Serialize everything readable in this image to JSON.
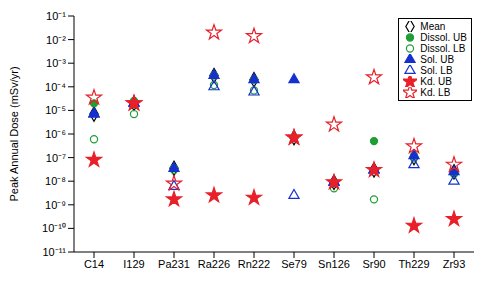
{
  "chart_data": {
    "type": "scatter",
    "ylabel": "Peak Annual Dose (mSv/yr)",
    "categories": [
      "C14",
      "I129",
      "Pa231",
      "Ra226",
      "Rn222",
      "Se79",
      "Sn126",
      "Sr90",
      "Th229",
      "Zr93"
    ],
    "log": "y",
    "grid": false,
    "legend": "top right",
    "ylim": [
      1e-11,
      0.1
    ],
    "yticks": [
      {
        "value": 1e-11,
        "label": "10⁻¹¹"
      },
      {
        "value": 1e-10,
        "label": "10⁻¹⁰"
      },
      {
        "value": 1e-09,
        "label": "10⁻⁹"
      },
      {
        "value": 1e-08,
        "label": "10⁻⁸"
      },
      {
        "value": 1e-07,
        "label": "10⁻⁷"
      },
      {
        "value": 1e-06,
        "label": "10⁻⁶"
      },
      {
        "value": 1e-05,
        "label": "10⁻⁵"
      },
      {
        "value": 0.0001,
        "label": "10⁻⁴"
      },
      {
        "value": 0.001,
        "label": "10⁻³"
      },
      {
        "value": 0.01,
        "label": "10⁻²"
      },
      {
        "value": 0.1,
        "label": "10⁻¹"
      }
    ],
    "series": [
      {
        "name": "Mean",
        "color": "#000000",
        "marker": "diamond_open",
        "values": [
          7e-06,
          2e-05,
          3.5e-08,
          0.0003,
          0.0002,
          7e-07,
          9e-09,
          3e-08,
          1e-07,
          2.5e-08
        ]
      },
      {
        "name": "Dissol. UB",
        "color": "#1e9e35",
        "marker": "circle",
        "values": [
          2e-05,
          2.5e-05,
          3.5e-08,
          0.0003,
          0.0002,
          7e-07,
          9e-09,
          5e-07,
          1.2e-07,
          2.5e-08
        ]
      },
      {
        "name": "Dissol. LB",
        "color": "#1e9e35",
        "marker": "circle_open",
        "values": [
          6e-07,
          7e-06,
          3e-08,
          0.00012,
          7e-05,
          7e-07,
          5e-09,
          1.7e-09,
          1e-07,
          2e-08
        ]
      },
      {
        "name": "Sol. UB",
        "color": "#1530d0",
        "marker": "triangle",
        "values": [
          7e-06,
          2e-05,
          3.5e-08,
          0.0003,
          0.0002,
          0.0002,
          9e-09,
          3e-08,
          1.2e-07,
          2.5e-08
        ]
      },
      {
        "name": "Sol. LB",
        "color": "#1530d0",
        "marker": "triangle_open",
        "values": [
          7e-06,
          2e-05,
          6e-09,
          0.0001,
          6e-05,
          2.5e-09,
          9e-09,
          3e-08,
          5e-08,
          1e-08
        ]
      },
      {
        "name": "Kd. UB",
        "color": "#e8202a",
        "marker": "star",
        "values": [
          8e-08,
          2e-05,
          1.7e-09,
          2.5e-09,
          2e-09,
          7e-07,
          9e-09,
          3e-08,
          1.3e-10,
          2.5e-10
        ]
      },
      {
        "name": "Kd. LB",
        "color": "#e8202a",
        "marker": "star_open",
        "values": [
          3.5e-05,
          2e-05,
          8e-09,
          0.02,
          0.014,
          7e-07,
          2.5e-06,
          0.00025,
          3e-07,
          5e-08
        ]
      }
    ]
  }
}
